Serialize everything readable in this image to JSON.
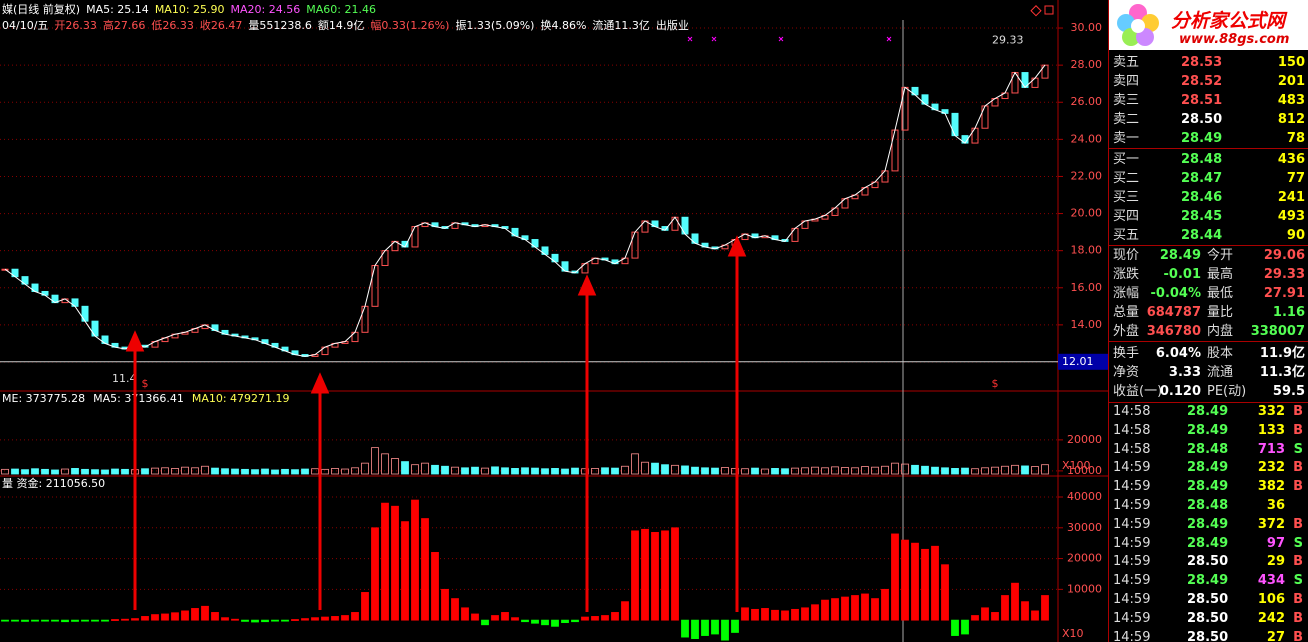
{
  "header": {
    "line1": [
      {
        "text": "媒(日线 前复权)",
        "color": "#ffffff"
      },
      {
        "text": "MA5: 25.14",
        "color": "#ffffff"
      },
      {
        "text": "MA10: 25.90",
        "color": "#ffff54"
      },
      {
        "text": "MA20: 24.56",
        "color": "#ff54ff"
      },
      {
        "text": "MA60: 21.46",
        "color": "#54ff54"
      }
    ],
    "line2": [
      {
        "text": "04/10/五",
        "color": "#ffffff"
      },
      {
        "text": "开26.33",
        "color": "#ff5050"
      },
      {
        "text": "高27.66",
        "color": "#ff5050"
      },
      {
        "text": "低26.33",
        "color": "#ff5050"
      },
      {
        "text": "收26.47",
        "color": "#ff5050"
      },
      {
        "text": "量551238.6",
        "color": "#ffffff"
      },
      {
        "text": "额14.9亿",
        "color": "#ffffff"
      },
      {
        "text": "幅0.33(1.26%)",
        "color": "#ff5050"
      },
      {
        "text": "振1.33(5.09%)",
        "color": "#ffffff"
      },
      {
        "text": "换4.86%",
        "color": "#ffffff"
      },
      {
        "text": "流通11.3亿",
        "color": "#ffffff"
      },
      {
        "text": "出版业",
        "color": "#ffffff"
      }
    ]
  },
  "chart_data": [
    {
      "type": "candlestick",
      "up_color": "#ff5050",
      "down_color": "#54fcfc",
      "ylim": [
        10.49,
        31.08
      ],
      "yticks": [
        {
          "value": 12,
          "label": "12.00"
        },
        {
          "value": 14,
          "label": "14.00"
        },
        {
          "value": 16,
          "label": "16.00"
        },
        {
          "value": 18,
          "label": "18.00"
        },
        {
          "value": 20,
          "label": "20.00"
        },
        {
          "value": 22,
          "label": "22.00"
        },
        {
          "value": 24,
          "label": "24.00"
        },
        {
          "value": 26,
          "label": "26.00"
        },
        {
          "value": 28,
          "label": "28.00"
        },
        {
          "value": 30,
          "label": "30.00"
        }
      ],
      "grid": true,
      "values": [
        17.0,
        16.6,
        16.2,
        15.8,
        15.6,
        15.2,
        15.4,
        15.0,
        14.2,
        13.4,
        13.0,
        12.8,
        12.7,
        12.9,
        12.8,
        13.1,
        13.3,
        13.5,
        13.6,
        13.8,
        14.0,
        13.7,
        13.5,
        13.4,
        13.3,
        13.2,
        13.0,
        12.8,
        12.6,
        12.4,
        12.3,
        12.4,
        12.8,
        13.0,
        13.1,
        13.6,
        15.0,
        17.2,
        18.0,
        18.5,
        18.2,
        19.3,
        19.5,
        19.3,
        19.2,
        19.5,
        19.4,
        19.3,
        19.4,
        19.3,
        19.2,
        18.8,
        18.6,
        18.2,
        17.8,
        17.4,
        16.9,
        16.8,
        17.3,
        17.6,
        17.5,
        17.3,
        17.6,
        19.0,
        19.6,
        19.3,
        19.1,
        19.8,
        18.9,
        18.4,
        18.2,
        18.1,
        18.3,
        18.6,
        18.9,
        18.7,
        18.8,
        18.6,
        18.5,
        19.2,
        19.6,
        19.7,
        19.9,
        20.3,
        20.8,
        21.0,
        21.4,
        21.7,
        22.3,
        24.5,
        26.8,
        26.4,
        25.9,
        25.6,
        25.4,
        24.2,
        23.8,
        24.6,
        25.8,
        26.2,
        26.5,
        27.6,
        26.8,
        27.3,
        28.0
      ],
      "annotations": [
        {
          "text": "29.33",
          "value": 29.33
        },
        {
          "text": "11.4",
          "value": 11.4
        }
      ],
      "price_tag": {
        "value": 12.01,
        "label": "12.01"
      },
      "markers": [
        "$",
        "$"
      ]
    },
    {
      "type": "bar",
      "title": [
        {
          "text": "ME: 373775.28",
          "color": "#ffffff"
        },
        {
          "text": "MA5: 371366.41",
          "color": "#ffffff"
        },
        {
          "text": "MA10: 479271.19",
          "color": "#ffff54"
        }
      ],
      "unit_label": "X100",
      "color": "#ff9090",
      "ylim": [
        9000,
        33500
      ],
      "yticks": [
        10000,
        20000
      ],
      "values": [
        10500,
        10600,
        10400,
        10700,
        10500,
        10300,
        10600,
        10800,
        10500,
        10400,
        10300,
        10600,
        10500,
        10400,
        10700,
        10900,
        11000,
        10800,
        11200,
        11000,
        11500,
        10900,
        10700,
        10600,
        10500,
        10400,
        10600,
        10300,
        10500,
        10400,
        10600,
        10700,
        10500,
        10800,
        10600,
        11000,
        12500,
        17500,
        15500,
        14000,
        13000,
        12000,
        12500,
        11800,
        11500,
        11200,
        11000,
        11200,
        10900,
        11300,
        11000,
        10800,
        11000,
        10900,
        10700,
        10800,
        10600,
        10900,
        10700,
        10800,
        11000,
        10900,
        11500,
        15500,
        12800,
        12500,
        12000,
        11800,
        11600,
        11200,
        11000,
        10900,
        11100,
        10800,
        10700,
        10900,
        10600,
        10800,
        10700,
        10900,
        11000,
        11200,
        11000,
        11300,
        11100,
        11000,
        11400,
        11200,
        11500,
        12500,
        12200,
        11800,
        11500,
        11200,
        11000,
        10800,
        10900,
        10700,
        11000,
        11200,
        11500,
        11800,
        11600,
        11400,
        12000
      ]
    },
    {
      "type": "bar",
      "title": [
        {
          "text": "量 资金: 211056.50",
          "color": "#ffffff"
        }
      ],
      "unit_label": "X10",
      "up_color": "#ff0000",
      "down_color": "#00ff00",
      "ylim": [
        -7100,
        43900
      ],
      "yticks": [
        10000,
        20000,
        30000,
        40000
      ],
      "values": [
        -300,
        -200,
        -400,
        -300,
        -200,
        -300,
        -500,
        -400,
        -300,
        -200,
        -100,
        200,
        300,
        500,
        1200,
        1800,
        2000,
        2400,
        3000,
        3800,
        4500,
        2500,
        800,
        300,
        -400,
        -600,
        -500,
        -300,
        -200,
        200,
        500,
        800,
        1000,
        1200,
        1500,
        2500,
        9000,
        30000,
        38000,
        37000,
        32000,
        39000,
        33000,
        22000,
        10000,
        7000,
        4000,
        2000,
        -1500,
        1500,
        2500,
        800,
        -500,
        -1000,
        -1500,
        -2000,
        -800,
        -500,
        1000,
        1200,
        1500,
        2500,
        6000,
        29000,
        29500,
        28500,
        29000,
        30000,
        -5500,
        -6000,
        -5000,
        -4500,
        -6500,
        -4000,
        4000,
        3500,
        3800,
        3200,
        3000,
        3500,
        4000,
        5000,
        6500,
        7000,
        7500,
        8000,
        8500,
        7000,
        10000,
        28000,
        26000,
        25000,
        23000,
        24000,
        18000,
        -5000,
        -4500,
        1500,
        4000,
        2500,
        8000,
        12000,
        6000,
        3000,
        8000
      ]
    }
  ],
  "logo": {
    "title": "分析家公式网",
    "url": "www.88gs.com"
  },
  "orderbook": [
    [
      "卖五",
      "28.53",
      "150",
      "#ff5050"
    ],
    [
      "卖四",
      "28.52",
      "201",
      "#ff5050"
    ],
    [
      "卖三",
      "28.51",
      "483",
      "#ff5050"
    ],
    [
      "卖二",
      "28.50",
      "812",
      "#ffffff"
    ],
    [
      "卖一",
      "28.49",
      "78",
      "#54ff54"
    ],
    [
      "买一",
      "28.48",
      "436",
      "#54ff54"
    ],
    [
      "买二",
      "28.47",
      "77",
      "#54ff54"
    ],
    [
      "买三",
      "28.46",
      "241",
      "#54ff54"
    ],
    [
      "买四",
      "28.45",
      "493",
      "#54ff54"
    ],
    [
      "买五",
      "28.44",
      "90",
      "#54ff54"
    ]
  ],
  "quote": [
    [
      "现价",
      "28.49",
      "今开",
      "29.06"
    ],
    [
      "涨跌",
      "-0.01",
      "最高",
      "29.33"
    ],
    [
      "涨幅",
      "-0.04%",
      "最低",
      "27.91"
    ],
    [
      "总量",
      "684787",
      "量比",
      "1.16"
    ],
    [
      "外盘",
      "346780",
      "内盘",
      "338007"
    ],
    [
      "换手",
      "6.04%",
      "股本",
      "11.9亿"
    ],
    [
      "净资",
      "3.33",
      "流通",
      "11.3亿"
    ],
    [
      "收益(一)",
      "0.120",
      "PE(动)",
      "59.5"
    ]
  ],
  "ticks": [
    [
      "14:58",
      "28.49",
      "332",
      "B"
    ],
    [
      "14:58",
      "28.49",
      "133",
      "B"
    ],
    [
      "14:58",
      "28.48",
      "713",
      "S"
    ],
    [
      "14:59",
      "28.49",
      "232",
      "B"
    ],
    [
      "14:59",
      "28.49",
      "382",
      "B"
    ],
    [
      "14:59",
      "28.48",
      "36",
      ""
    ],
    [
      "14:59",
      "28.49",
      "372",
      "B"
    ],
    [
      "14:59",
      "28.49",
      "97",
      "S"
    ],
    [
      "14:59",
      "28.50",
      "29",
      "B"
    ],
    [
      "14:59",
      "28.49",
      "434",
      "S"
    ],
    [
      "14:59",
      "28.50",
      "106",
      "B"
    ],
    [
      "14:59",
      "28.50",
      "242",
      "B"
    ],
    [
      "14:59",
      "28.50",
      "27",
      "B"
    ]
  ]
}
